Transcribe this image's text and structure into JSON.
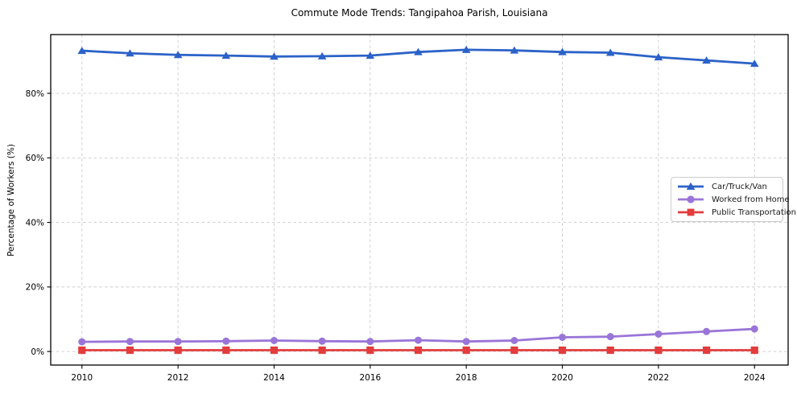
{
  "figure": {
    "background": "#ffffff"
  },
  "chart_data": {
    "type": "line",
    "title": "Commute Mode Trends: Tangipahoa Parish, Louisiana",
    "xlabel": "",
    "ylabel": "Percentage of Workers (%)",
    "x": [
      2010,
      2011,
      2012,
      2013,
      2014,
      2015,
      2016,
      2017,
      2018,
      2019,
      2020,
      2021,
      2022,
      2023,
      2024
    ],
    "series": [
      {
        "name": "Car/Truck/Van",
        "marker": "triangle",
        "color": "#2b62c8",
        "values": [
          93.2,
          92.4,
          91.9,
          91.7,
          91.4,
          91.5,
          91.7,
          92.8,
          93.5,
          93.3,
          92.8,
          92.6,
          91.2,
          90.2,
          89.2
        ]
      },
      {
        "name": "Worked from Home",
        "marker": "circle",
        "color": "#9a75d8",
        "values": [
          3.0,
          3.1,
          3.1,
          3.2,
          3.4,
          3.2,
          3.1,
          3.5,
          3.1,
          3.4,
          4.4,
          4.6,
          5.4,
          6.2,
          7.0
        ]
      },
      {
        "name": "Public Transportation",
        "marker": "square",
        "color": "#e23c3c",
        "values": [
          0.4,
          0.4,
          0.4,
          0.4,
          0.4,
          0.4,
          0.4,
          0.4,
          0.4,
          0.4,
          0.4,
          0.4,
          0.4,
          0.4,
          0.4
        ]
      }
    ],
    "x_ticks": [
      2010,
      2012,
      2014,
      2016,
      2018,
      2020,
      2022,
      2024
    ],
    "y_ticks": [
      0,
      20,
      40,
      60,
      80
    ],
    "y_tick_suffix": "%",
    "xlim": [
      2009.35,
      2024.7
    ],
    "ylim": [
      -4.2,
      98.2
    ],
    "grid": true,
    "grid_color": "#cccccc",
    "spine_color": "#000000",
    "legend_position": "center-right"
  }
}
